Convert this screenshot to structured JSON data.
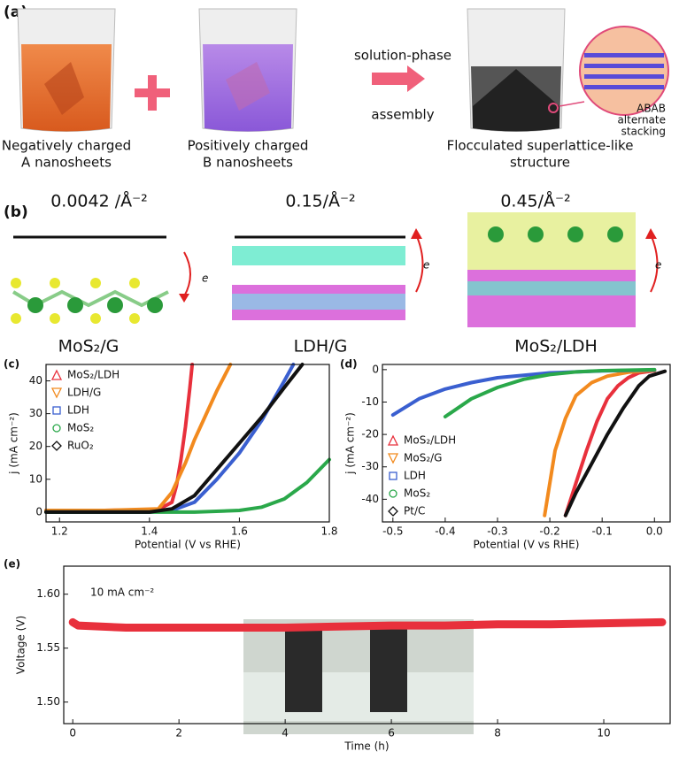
{
  "panel_a": {
    "label": "(a)",
    "captions": [
      [
        "Negatively charged",
        "A nanosheets"
      ],
      [
        "Positively charged",
        "B nanosheets"
      ],
      [
        "Flocculated superlattice-like",
        "structure"
      ]
    ],
    "arrow_text": [
      "solution-phase",
      "assembly"
    ],
    "inset": [
      "ABAB",
      "alternate",
      "stacking"
    ]
  },
  "panel_b": {
    "label": "(b)",
    "densities": [
      "0.0042 /Å⁻²",
      "0.15/Å⁻²",
      "0.45/Å⁻²"
    ],
    "electron": [
      "e",
      "e",
      "e"
    ],
    "names": [
      "MoS₂/G",
      "LDH/G",
      "MoS₂/LDH"
    ]
  },
  "chart_data": [
    {
      "type": "line",
      "panel_label": "(c)",
      "xlabel": "Potential (V vs RHE)",
      "ylabel": "j (mA cm⁻²)",
      "xlim": [
        1.17,
        1.8
      ],
      "xticks": [
        1.2,
        1.4,
        1.6,
        1.8
      ],
      "ylim": [
        -3,
        45
      ],
      "yticks": [
        0,
        10,
        20,
        30,
        40
      ],
      "legend": "top-left",
      "series": [
        {
          "name": "MoS₂/LDH",
          "color": "#e8303c",
          "marker": "triangle",
          "x": [
            1.17,
            1.3,
            1.42,
            1.45,
            1.46,
            1.47,
            1.48,
            1.49,
            1.495
          ],
          "values": [
            0.5,
            0.5,
            0.8,
            3,
            8,
            16,
            26,
            38,
            45
          ]
        },
        {
          "name": "LDH/G",
          "color": "#f28a1e",
          "marker": "triangle-down",
          "x": [
            1.17,
            1.3,
            1.42,
            1.45,
            1.48,
            1.5,
            1.52,
            1.55,
            1.58
          ],
          "values": [
            0.5,
            0.5,
            1,
            6,
            15,
            22,
            28,
            37,
            45
          ]
        },
        {
          "name": "LDH",
          "color": "#3a5fd0",
          "marker": "square",
          "x": [
            1.17,
            1.4,
            1.45,
            1.5,
            1.55,
            1.6,
            1.65,
            1.7,
            1.72
          ],
          "values": [
            0,
            0,
            0.5,
            3,
            10,
            18,
            28,
            40,
            45
          ]
        },
        {
          "name": "MoS₂",
          "color": "#2aa84a",
          "marker": "circle",
          "x": [
            1.17,
            1.5,
            1.6,
            1.65,
            1.7,
            1.75,
            1.8
          ],
          "values": [
            0,
            0,
            0.5,
            1.5,
            4,
            9,
            16
          ]
        },
        {
          "name": "RuO₂",
          "color": "#111111",
          "marker": "diamond",
          "x": [
            1.17,
            1.4,
            1.45,
            1.5,
            1.55,
            1.6,
            1.65,
            1.7,
            1.74
          ],
          "values": [
            0,
            0,
            1,
            5,
            13,
            21,
            29,
            38,
            45
          ]
        }
      ]
    },
    {
      "type": "line",
      "panel_label": "(d)",
      "xlabel": "Potential (V vs RHE)",
      "ylabel": "j (mA cm⁻²)",
      "xlim": [
        -0.52,
        0.03
      ],
      "xticks": [
        -0.5,
        -0.4,
        -0.3,
        -0.2,
        -0.1,
        {
          "value": 0,
          "label": "0.0"
        }
      ],
      "ylim": [
        -47,
        1.6
      ],
      "yticks": [
        0,
        -10,
        -20,
        -30,
        -40
      ],
      "legend": "bottom-left",
      "series": [
        {
          "name": "MoS₂/LDH",
          "color": "#e8303c",
          "marker": "triangle",
          "x": [
            -0.17,
            -0.15,
            -0.13,
            -0.11,
            -0.09,
            -0.07,
            -0.05,
            -0.03,
            0
          ],
          "values": [
            -45,
            -35,
            -25,
            -16,
            -9,
            -5,
            -2.5,
            -1,
            -0.3
          ]
        },
        {
          "name": "MoS₂/G",
          "color": "#f28a1e",
          "marker": "triangle-down",
          "x": [
            -0.21,
            -0.2,
            -0.19,
            -0.17,
            -0.15,
            -0.12,
            -0.09,
            -0.05,
            0
          ],
          "values": [
            -45,
            -35,
            -25,
            -15,
            -8,
            -4,
            -2,
            -0.8,
            -0.2
          ]
        },
        {
          "name": "LDH",
          "color": "#3a5fd0",
          "marker": "square",
          "x": [
            -0.5,
            -0.45,
            -0.4,
            -0.35,
            -0.3,
            -0.2,
            -0.1,
            0
          ],
          "values": [
            -14,
            -9,
            -6,
            -4,
            -2.5,
            -1,
            -0.4,
            -0.1
          ]
        },
        {
          "name": "MoS₂",
          "color": "#2aa84a",
          "marker": "circle",
          "x": [
            -0.4,
            -0.35,
            -0.3,
            -0.25,
            -0.2,
            -0.15,
            -0.1,
            0
          ],
          "values": [
            -14.5,
            -9,
            -5.5,
            -3,
            -1.5,
            -0.7,
            -0.3,
            0
          ]
        },
        {
          "name": "Pt/C",
          "color": "#111111",
          "marker": "diamond",
          "x": [
            -0.17,
            -0.15,
            -0.12,
            -0.09,
            -0.06,
            -0.03,
            -0.01,
            0.02
          ],
          "values": [
            -45,
            -38,
            -29,
            -20,
            -12,
            -5,
            -2,
            -0.5
          ]
        }
      ]
    },
    {
      "type": "line",
      "panel_label": "(e)",
      "xlabel": "Time (h)",
      "ylabel": "Voltage (V)",
      "annotation": "10 mA cm⁻²",
      "xlim": [
        -0.17,
        11.25
      ],
      "xticks": [
        0,
        2,
        4,
        6,
        8,
        10
      ],
      "ylim": [
        1.48,
        1.626
      ],
      "yticks": [
        {
          "value": 1.5,
          "label": "1.50"
        },
        1.55,
        {
          "value": 1.6,
          "label": "1.60"
        }
      ],
      "color": "#e8303c",
      "x": [
        0,
        0.1,
        1,
        2,
        3,
        4,
        5,
        6,
        7,
        8,
        9,
        10,
        11.1
      ],
      "values": [
        1.574,
        1.571,
        1.569,
        1.569,
        1.569,
        1.569,
        1.57,
        1.571,
        1.571,
        1.572,
        1.572,
        1.573,
        1.574
      ]
    }
  ]
}
